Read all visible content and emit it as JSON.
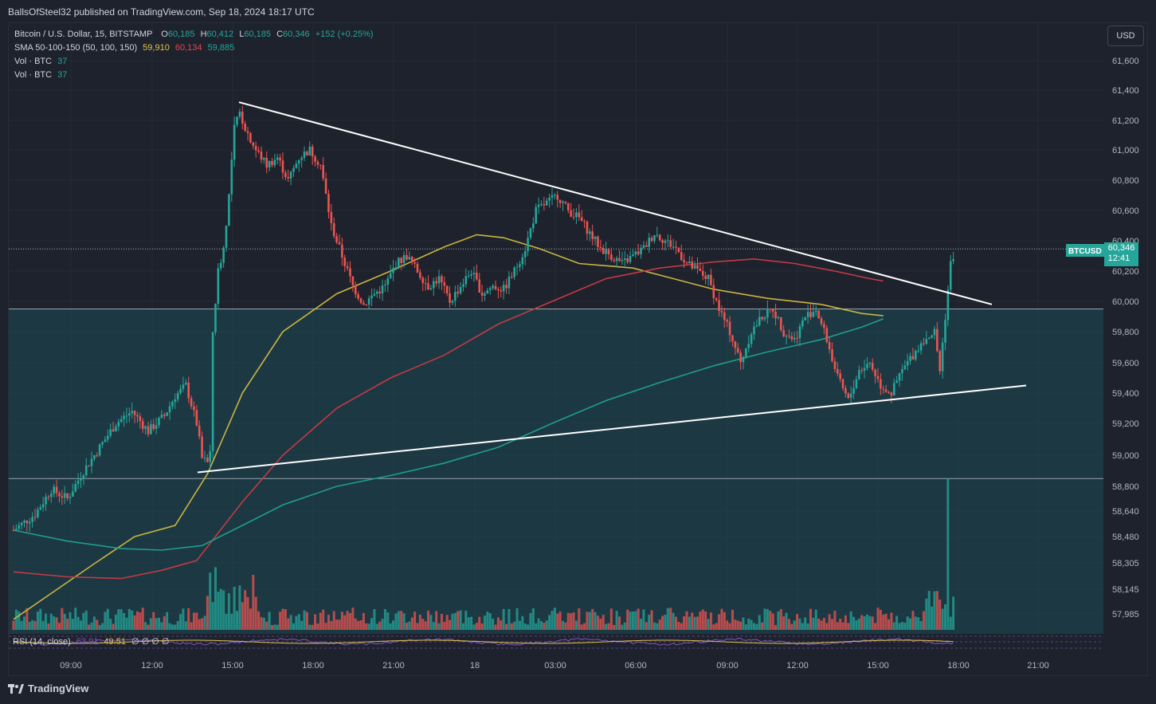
{
  "header": {
    "published": "BallsOfSteel32 published on TradingView.com, Sep 18, 2024 18:17 UTC"
  },
  "legend": {
    "symbol": "Bitcoin / U.S. Dollar, 15, BITSTAMP",
    "o_label": "O",
    "o": "60,185",
    "h_label": "H",
    "h": "60,412",
    "l_label": "L",
    "l": "60,185",
    "c_label": "C",
    "c": "60,346",
    "change": "+152 (+0.25%)",
    "sma_label": "SMA 50-100-150 (50, 100, 150)",
    "sma50": "59,910",
    "sma100": "60,134",
    "sma150": "59,885",
    "vol1_label": "Vol · BTC",
    "vol1": "37",
    "vol2_label": "Vol · BTC",
    "vol2": "37"
  },
  "currency_button": "USD",
  "last_price": {
    "symbol": "BTCUSD",
    "price": "60,346",
    "countdown": "12:41"
  },
  "rsi": {
    "label": "RSI (14, close)",
    "v1": "63.91",
    "v2": "49.51",
    "rest": "∅ ∅ ∅ ∅"
  },
  "footer": {
    "brand": "TradingView"
  },
  "colors": {
    "up": "#26a69a",
    "down": "#ef5350",
    "sma50": "#c9b53f",
    "sma100": "#c43a44",
    "sma150": "#1f9e8c",
    "background": "#1e222d",
    "zone": "#1b4b55"
  },
  "chart_data": {
    "type": "candlestick",
    "timeframe": "15",
    "y_ticks": [
      "61,600",
      "61,400",
      "61,200",
      "61,000",
      "60,800",
      "60,600",
      "60,400",
      "60,200",
      "60,000",
      "59,800",
      "59,600",
      "59,400",
      "59,200",
      "59,000",
      "58,800",
      "58,640",
      "58,480",
      "58,305",
      "58,145",
      "57,985"
    ],
    "y_tick_values": [
      61600,
      61400,
      61200,
      61000,
      60800,
      60600,
      60400,
      60200,
      60000,
      59800,
      59600,
      59400,
      59200,
      59000,
      58800,
      58640,
      58480,
      58305,
      58145,
      57985
    ],
    "x_ticks": [
      "09:00",
      "12:00",
      "15:00",
      "18:00",
      "21:00",
      "18",
      "03:00",
      "06:00",
      "09:00",
      "12:00",
      "15:00",
      "18:00",
      "21:00"
    ],
    "horizontal_levels": [
      59950,
      58850
    ],
    "trendlines": [
      {
        "name": "upper",
        "from": [
          "Sep 17 15:15",
          61320
        ],
        "to": [
          "Sep 18 19:15",
          59980
        ]
      },
      {
        "name": "lower",
        "from": [
          "Sep 17 13:45",
          58890
        ],
        "to": [
          "Sep 18 21:15",
          59450
        ]
      }
    ],
    "shaded_zone": [
      58850,
      59950
    ],
    "sma_series": [
      {
        "name": "SMA 50",
        "color": "#c9b53f",
        "points": [
          [
            0,
            57950
          ],
          [
            30,
            58300
          ],
          [
            45,
            58480
          ],
          [
            60,
            58550
          ],
          [
            72,
            58880
          ],
          [
            85,
            59400
          ],
          [
            100,
            59800
          ],
          [
            120,
            60050
          ],
          [
            140,
            60200
          ],
          [
            160,
            60360
          ],
          [
            172,
            60440
          ],
          [
            182,
            60420
          ],
          [
            195,
            60350
          ],
          [
            210,
            60250
          ],
          [
            230,
            60220
          ],
          [
            245,
            60150
          ],
          [
            260,
            60080
          ],
          [
            280,
            60020
          ],
          [
            300,
            59980
          ],
          [
            315,
            59920
          ],
          [
            323,
            59905
          ]
        ]
      },
      {
        "name": "SMA 100",
        "color": "#c43a44",
        "points": [
          [
            0,
            58250
          ],
          [
            20,
            58220
          ],
          [
            40,
            58210
          ],
          [
            55,
            58260
          ],
          [
            68,
            58320
          ],
          [
            85,
            58700
          ],
          [
            100,
            59000
          ],
          [
            120,
            59300
          ],
          [
            140,
            59500
          ],
          [
            160,
            59650
          ],
          [
            180,
            59850
          ],
          [
            200,
            60000
          ],
          [
            220,
            60150
          ],
          [
            240,
            60220
          ],
          [
            260,
            60260
          ],
          [
            275,
            60280
          ],
          [
            290,
            60250
          ],
          [
            305,
            60200
          ],
          [
            318,
            60150
          ],
          [
            323,
            60134
          ]
        ]
      },
      {
        "name": "SMA 150",
        "color": "#1f9e8c",
        "points": [
          [
            0,
            58520
          ],
          [
            20,
            58450
          ],
          [
            40,
            58400
          ],
          [
            55,
            58390
          ],
          [
            70,
            58420
          ],
          [
            85,
            58550
          ],
          [
            100,
            58680
          ],
          [
            120,
            58800
          ],
          [
            140,
            58870
          ],
          [
            160,
            58950
          ],
          [
            180,
            59050
          ],
          [
            200,
            59200
          ],
          [
            220,
            59350
          ],
          [
            240,
            59470
          ],
          [
            260,
            59580
          ],
          [
            280,
            59670
          ],
          [
            300,
            59750
          ],
          [
            315,
            59830
          ],
          [
            323,
            59885
          ]
        ]
      }
    ],
    "volume_peak_bar": 322
  }
}
